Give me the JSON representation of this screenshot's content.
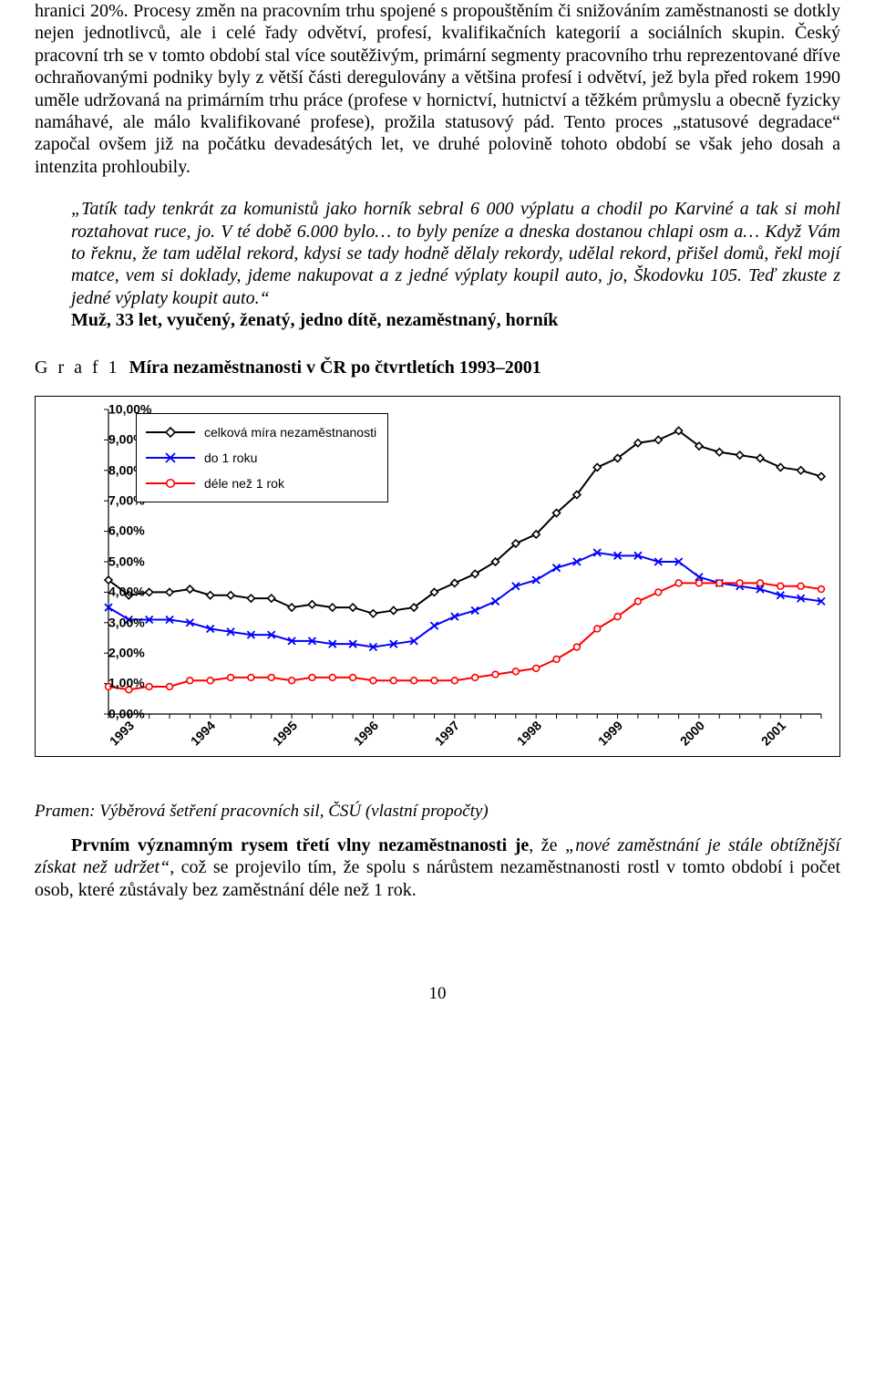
{
  "para1": "hranici 20%. Procesy změn na pracovním trhu spojené s propouštěním či snižováním zaměstnanosti se dotkly nejen jednotlivců, ale i celé řady odvětví, profesí, kvalifikačních kategorií a sociálních skupin. Český pracovní trh se v tomto období stal více soutěživým, primární segmenty pracovního trhu reprezentované dříve ochraňovanými podniky byly z větší části deregulovány a většina profesí i odvětví, jež byla před rokem 1990 uměle udržovaná na primárním trhu práce (profese v hornictví, hutnictví a těžkém průmyslu a obecně fyzicky namáhavé, ale málo kvalifikované profese), prožila statusový pád. Tento proces „statusové degradace“ započal ovšem již na počátku devadesátých let, ve druhé polovině tohoto období se však jeho dosah a intenzita prohloubily.",
  "quote": "„Tatík tady tenkrát za komunistů jako horník sebral 6 000 výplatu a chodil po Karviné a tak si mohl roztahovat ruce, jo. V té době 6.000 bylo… to byly peníze a dneska dostanou chlapi osm a… Když Vám to řeknu, že tam udělal rekord, kdysi se tady hodně dělaly rekordy, udělal rekord, přišel domů, řekl mojí matce, vem si doklady, jdeme nakupovat a z jedné výplaty koupil auto, jo, Škodovku 105. Teď zkuste z jedné výplaty koupit auto.“",
  "quote_attrib": "Muž, 33 let, vyučený, ženatý, jedno dítě, nezaměstnaný, horník",
  "graf_label": "G r a f   1",
  "graf_title": "Míra nezaměstnanosti v ČR po čtvrtletích 1993–2001",
  "caption": "Pramen: Výběrová šetření pracovních sil, ČSÚ (vlastní propočty)",
  "para2_lead_italic": "„nové zaměstnání je stále obtížnější získat než udržet“",
  "para2_lead_bold": "Prvním významným rysem třetí vlny nezaměstnanosti je",
  "para2_rest": ", což se projevilo tím, že spolu s nárůstem nezaměstnanosti rostl v tomto období i počet osob, které zůstávaly bez zaměstnání déle než 1 rok.",
  "pagenum": "10",
  "chart": {
    "type": "line",
    "background_color": "#ffffff",
    "border_color": "#000000",
    "axis_color": "#000000",
    "grid": false,
    "line_width": 2,
    "marker_size": 8,
    "font_family": "Arial",
    "label_fontsize": 14,
    "label_fontweight": "bold",
    "ylim": [
      0,
      10
    ],
    "ytick_step": 1,
    "ytick_labels": [
      "0,00%",
      "1,00%",
      "2,00%",
      "3,00%",
      "4,00%",
      "5,00%",
      "6,00%",
      "7,00%",
      "8,00%",
      "9,00%",
      "10,00%"
    ],
    "x_major_labels": [
      "1993",
      "1994",
      "1995",
      "1996",
      "1997",
      "1998",
      "1999",
      "2000",
      "2001"
    ],
    "n_points": 36,
    "legend": {
      "position": "top-left-inside",
      "border": true,
      "items": [
        {
          "label": "celková míra nezaměstnanosti",
          "color": "#000000",
          "marker": "diamond"
        },
        {
          "label": "do 1 roku",
          "color": "#0000ff",
          "marker": "x"
        },
        {
          "label": "déle než 1 rok",
          "color": "#ff0000",
          "marker": "circle"
        }
      ]
    },
    "series": {
      "total": {
        "color": "#000000",
        "marker": "diamond",
        "values": [
          4.4,
          3.9,
          4.0,
          4.0,
          4.1,
          3.9,
          3.9,
          3.8,
          3.8,
          3.5,
          3.6,
          3.5,
          3.5,
          3.3,
          3.4,
          3.5,
          4.0,
          4.3,
          4.6,
          5.0,
          5.6,
          5.9,
          6.6,
          7.2,
          8.1,
          8.4,
          8.9,
          9.0,
          9.3,
          8.8,
          8.6,
          8.5,
          8.4,
          8.1,
          8.0,
          7.8
        ]
      },
      "under1y": {
        "color": "#0000ff",
        "marker": "x",
        "values": [
          3.5,
          3.1,
          3.1,
          3.1,
          3.0,
          2.8,
          2.7,
          2.6,
          2.6,
          2.4,
          2.4,
          2.3,
          2.3,
          2.2,
          2.3,
          2.4,
          2.9,
          3.2,
          3.4,
          3.7,
          4.2,
          4.4,
          4.8,
          5.0,
          5.3,
          5.2,
          5.2,
          5.0,
          5.0,
          4.5,
          4.3,
          4.2,
          4.1,
          3.9,
          3.8,
          3.7
        ]
      },
      "over1y": {
        "color": "#ff0000",
        "marker": "circle",
        "values": [
          0.9,
          0.8,
          0.9,
          0.9,
          1.1,
          1.1,
          1.2,
          1.2,
          1.2,
          1.1,
          1.2,
          1.2,
          1.2,
          1.1,
          1.1,
          1.1,
          1.1,
          1.1,
          1.2,
          1.3,
          1.4,
          1.5,
          1.8,
          2.2,
          2.8,
          3.2,
          3.7,
          4.0,
          4.3,
          4.3,
          4.3,
          4.3,
          4.3,
          4.2,
          4.2,
          4.1
        ]
      }
    }
  }
}
